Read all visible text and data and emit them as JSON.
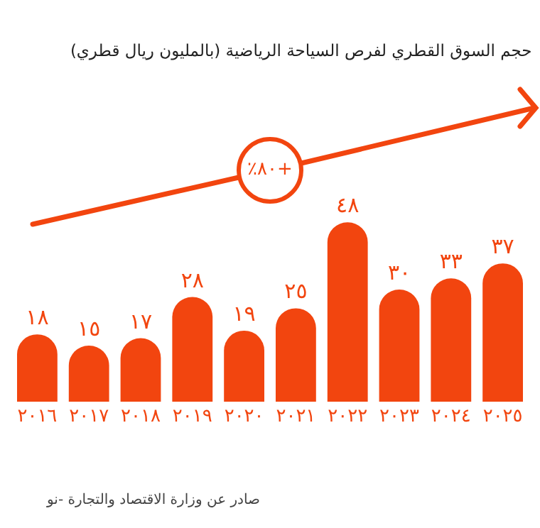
{
  "chart_data": {
    "type": "bar",
    "title": "حجم السوق القطري لفرص السياحة الرياضية (بالمليون ريال قطري)",
    "categories": [
      "٢٠١٦",
      "٢٠١٧",
      "٢٠١٨",
      "٢٠١٩",
      "٢٠٢٠",
      "٢٠٢١",
      "٢٠٢٢",
      "٢٠٢٣",
      "٢٠٢٤",
      "٢٠٢٥"
    ],
    "values": [
      18,
      15,
      17,
      28,
      19,
      25,
      48,
      30,
      33,
      37
    ],
    "value_labels": [
      "١٨",
      "١٥",
      "١٧",
      "٢٨",
      "١٩",
      "٢٥",
      "٤٨",
      "٣٠",
      "٣٣",
      "٣٧"
    ],
    "color": "#f2450f",
    "annotations": [
      "٪٨٠+",
      "صادر عن وزارة الاقتصاد والتجارة -نو"
    ]
  }
}
